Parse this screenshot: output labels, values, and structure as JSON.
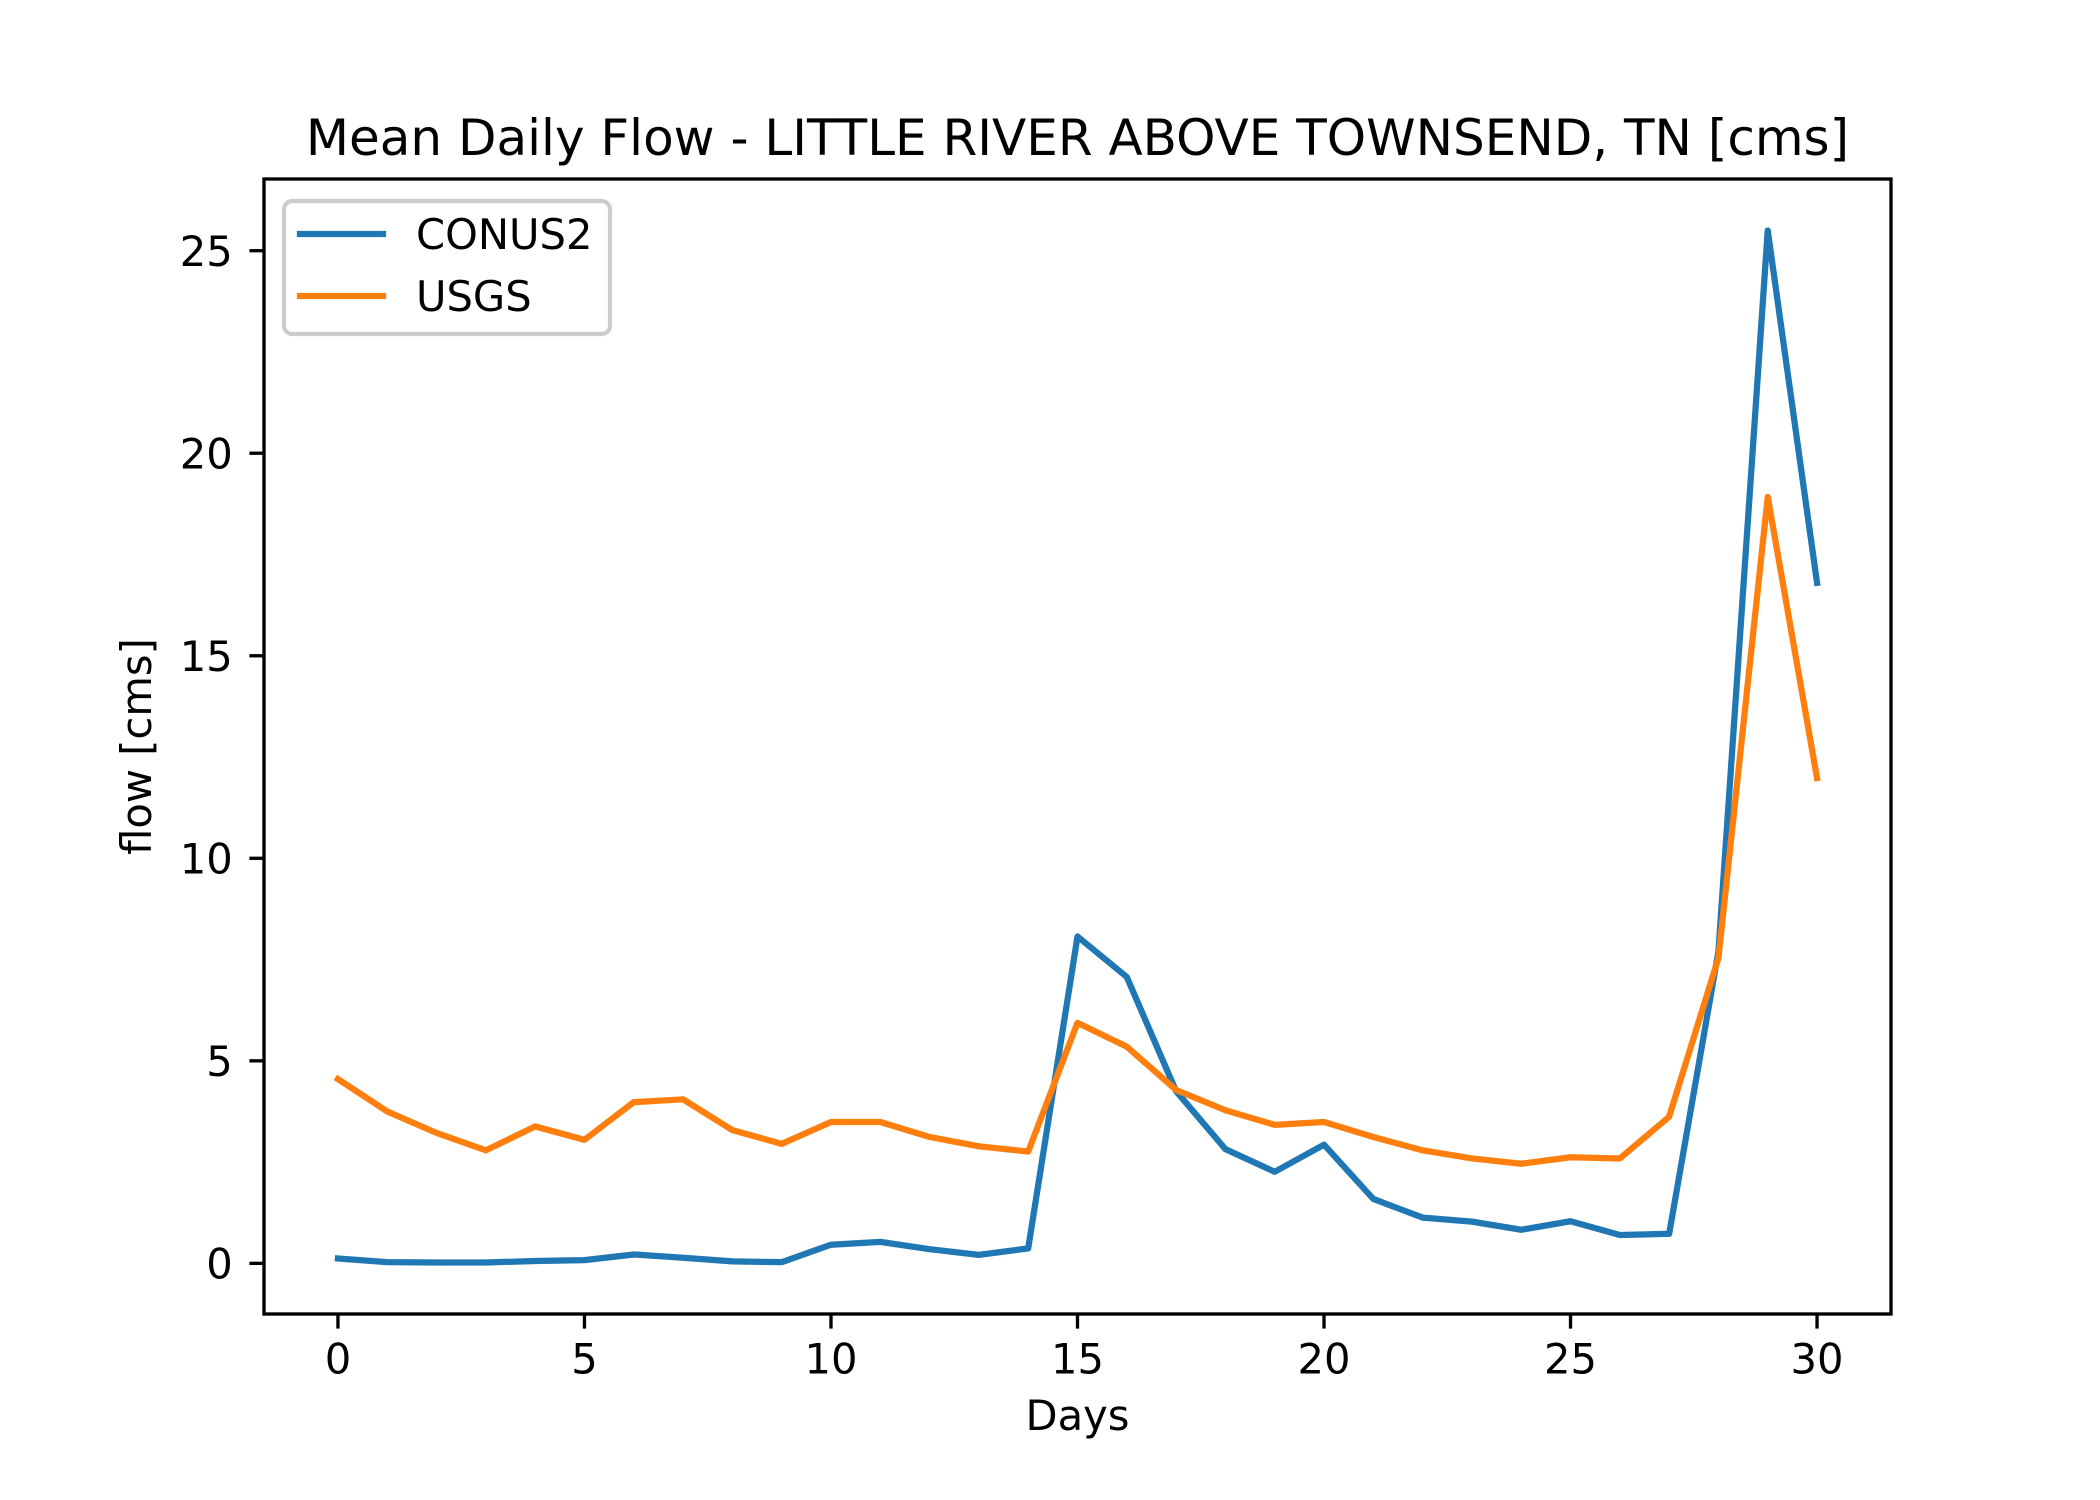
{
  "chart_data": {
    "type": "line",
    "title": "Mean Daily Flow - LITTLE RIVER ABOVE TOWNSEND, TN [cms]",
    "xlabel": "Days",
    "ylabel": "flow [cms]",
    "x": [
      0,
      1,
      2,
      3,
      4,
      5,
      6,
      7,
      8,
      9,
      10,
      11,
      12,
      13,
      14,
      15,
      16,
      17,
      18,
      19,
      20,
      21,
      22,
      23,
      24,
      25,
      26,
      27,
      28,
      29,
      30
    ],
    "xlim": [
      -1.5,
      31.5
    ],
    "ylim": [
      -1.25,
      26.77
    ],
    "xticks": [
      0,
      5,
      10,
      15,
      20,
      25,
      30
    ],
    "xtick_labels": [
      "0",
      "5",
      "10",
      "15",
      "20",
      "25",
      "30"
    ],
    "yticks": [
      0,
      5,
      10,
      15,
      20,
      25
    ],
    "ytick_labels": [
      "0",
      "5",
      "10",
      "15",
      "20",
      "25"
    ],
    "grid": false,
    "legend": "upper-left",
    "series": [
      {
        "name": "CONUS2",
        "color": "#1f77b4",
        "values": [
          0.12,
          0.03,
          0.02,
          0.02,
          0.06,
          0.08,
          0.22,
          0.14,
          0.05,
          0.03,
          0.46,
          0.53,
          0.35,
          0.21,
          0.37,
          8.07,
          7.07,
          4.25,
          2.82,
          2.26,
          2.93,
          1.59,
          1.13,
          1.03,
          0.83,
          1.04,
          0.7,
          0.73,
          7.7,
          25.5,
          16.8
        ]
      },
      {
        "name": "USGS",
        "color": "#ff7f0e",
        "values": [
          4.55,
          3.75,
          3.22,
          2.79,
          3.38,
          3.05,
          3.98,
          4.05,
          3.29,
          2.95,
          3.49,
          3.49,
          3.12,
          2.89,
          2.76,
          5.94,
          5.35,
          4.28,
          3.78,
          3.42,
          3.49,
          3.12,
          2.79,
          2.59,
          2.46,
          2.62,
          2.59,
          3.62,
          7.54,
          18.92,
          11.98
        ]
      }
    ]
  }
}
